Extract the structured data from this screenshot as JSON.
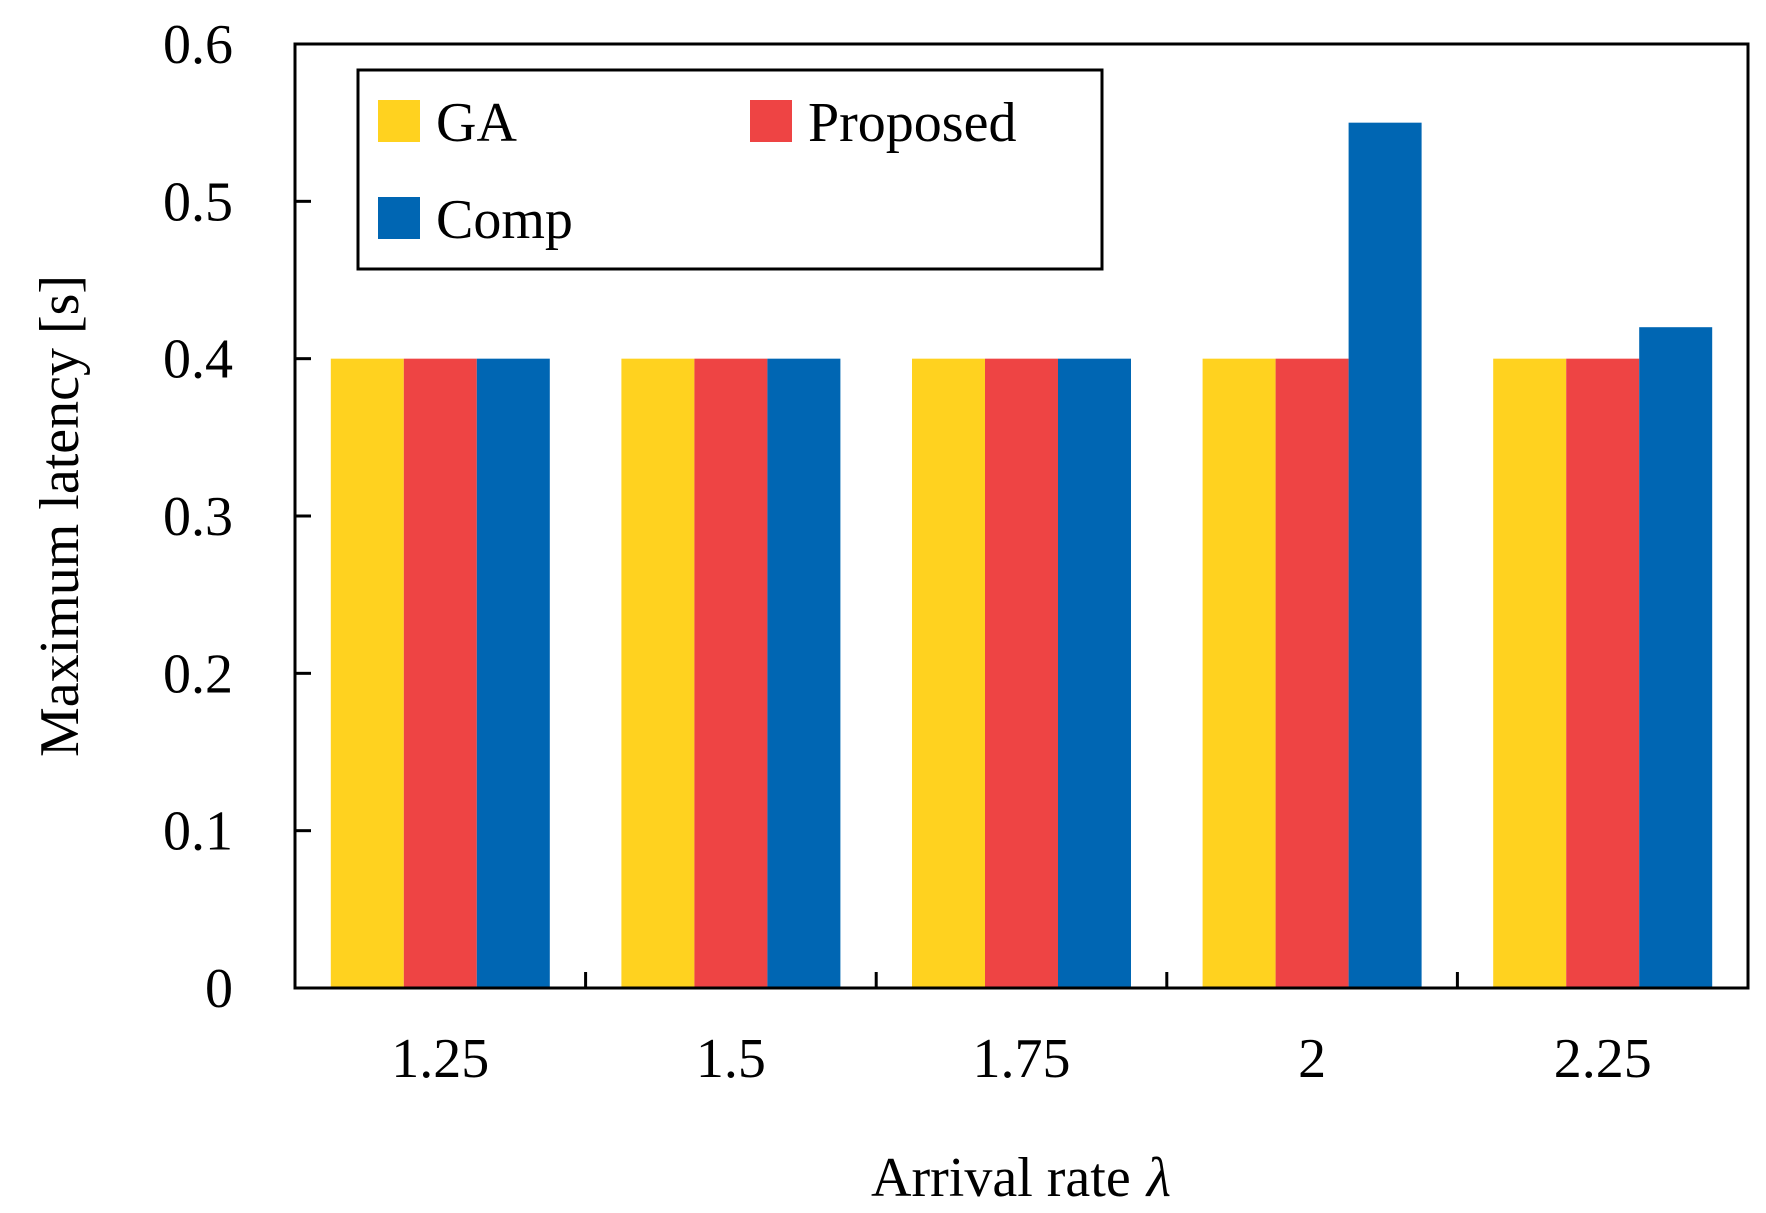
{
  "chart_data": {
    "type": "bar",
    "title": "",
    "xlabel": "Arrival rate",
    "xlabel_symbol": "λ",
    "ylabel": "Maximum latency [s]",
    "categories": [
      "1.25",
      "1.5",
      "1.75",
      "2",
      "2.25"
    ],
    "series": [
      {
        "name": "GA",
        "color": "#FFD21F",
        "values": [
          0.4,
          0.4,
          0.4,
          0.4,
          0.4
        ]
      },
      {
        "name": "Proposed",
        "color": "#EE4444",
        "values": [
          0.4,
          0.4,
          0.4,
          0.4,
          0.4
        ]
      },
      {
        "name": "Comp",
        "color": "#0066B3",
        "values": [
          0.4,
          0.4,
          0.4,
          0.55,
          0.42
        ]
      }
    ],
    "ylim": [
      0,
      0.6
    ],
    "yticks": [
      "0",
      "0.1",
      "0.2",
      "0.3",
      "0.4",
      "0.5",
      "0.6"
    ],
    "grid": false,
    "legend_position": "top-left"
  }
}
